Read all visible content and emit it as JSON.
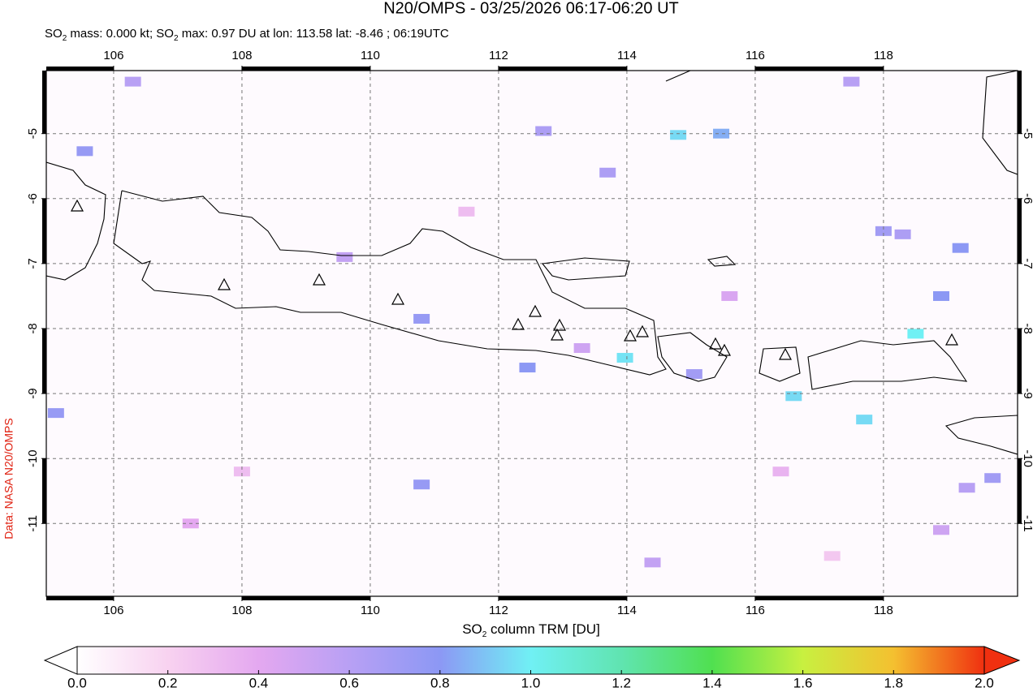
{
  "title": "N20/OMPS - 03/25/2026 06:17-06:20 UT",
  "subtitle": [
    "SO",
    "2",
    " mass: 0.000 kt; SO",
    "2",
    " max: 0.97 DU at lon: 113.58 lat: -8.46 ; 06:19UTC"
  ],
  "credit": "Data: NASA N20/OMPS",
  "chart_data": {
    "type": "map",
    "xlim": [
      104.95,
      120.09
    ],
    "ylim": [
      -12.12,
      -4.03
    ],
    "xticks": [
      106,
      108,
      110,
      112,
      114,
      116,
      118
    ],
    "yticks": [
      -5,
      -6,
      -7,
      -8,
      -9,
      -10,
      -11
    ],
    "grid": true,
    "pixels": [
      {
        "lon": 114.8,
        "lat": -5.02,
        "value": 0.95
      },
      {
        "lon": 115.47,
        "lat": -5.0,
        "value": 0.85
      },
      {
        "lon": 119.2,
        "lat": -6.76,
        "value": 0.8
      },
      {
        "lon": 118.9,
        "lat": -7.5,
        "value": 0.8
      },
      {
        "lon": 118.5,
        "lat": -8.08,
        "value": 1.0
      },
      {
        "lon": 116.6,
        "lat": -9.04,
        "value": 0.95
      },
      {
        "lon": 117.7,
        "lat": -9.4,
        "value": 0.95
      },
      {
        "lon": 113.97,
        "lat": -8.45,
        "value": 0.97
      },
      {
        "lon": 110.8,
        "lat": -7.85,
        "value": 0.75
      },
      {
        "lon": 112.45,
        "lat": -8.6,
        "value": 0.8
      },
      {
        "lon": 110.8,
        "lat": -10.4,
        "value": 0.75
      },
      {
        "lon": 105.55,
        "lat": -5.27,
        "value": 0.75
      },
      {
        "lon": 105.1,
        "lat": -9.3,
        "value": 0.75
      },
      {
        "lon": 119.7,
        "lat": -10.3,
        "value": 0.7
      },
      {
        "lon": 118.0,
        "lat": -6.5,
        "value": 0.7
      },
      {
        "lon": 118.3,
        "lat": -6.55,
        "value": 0.65
      },
      {
        "lon": 112.7,
        "lat": -4.96,
        "value": 0.65
      },
      {
        "lon": 113.7,
        "lat": -5.6,
        "value": 0.65
      },
      {
        "lon": 115.05,
        "lat": -8.7,
        "value": 0.7
      },
      {
        "lon": 117.5,
        "lat": -4.2,
        "value": 0.6
      },
      {
        "lon": 119.3,
        "lat": -10.45,
        "value": 0.6
      },
      {
        "lon": 108.0,
        "lat": -10.2,
        "value": 0.3
      },
      {
        "lon": 106.3,
        "lat": -4.2,
        "value": 0.6
      },
      {
        "lon": 109.6,
        "lat": -6.9,
        "value": 0.55
      },
      {
        "lon": 113.3,
        "lat": -8.3,
        "value": 0.5
      },
      {
        "lon": 115.6,
        "lat": -7.5,
        "value": 0.45
      },
      {
        "lon": 116.4,
        "lat": -10.2,
        "value": 0.35
      },
      {
        "lon": 107.2,
        "lat": -11.0,
        "value": 0.4
      },
      {
        "lon": 111.5,
        "lat": -6.2,
        "value": 0.3
      },
      {
        "lon": 117.2,
        "lat": -11.5,
        "value": 0.25
      },
      {
        "lon": 114.4,
        "lat": -11.6,
        "value": 0.55
      },
      {
        "lon": 118.9,
        "lat": -11.1,
        "value": 0.5
      }
    ],
    "colorbar": {
      "label": [
        "SO",
        "2",
        " column TRM [DU]"
      ],
      "lim": [
        0,
        2
      ],
      "ticks": [
        {
          "value": 0,
          "label": "0.0"
        },
        {
          "value": 0.2,
          "label": "0.2"
        },
        {
          "value": 0.4,
          "label": "0.4"
        },
        {
          "value": 0.6,
          "label": "0.6"
        },
        {
          "value": 0.8,
          "label": "0.8"
        },
        {
          "value": 1.0,
          "label": "1.0"
        },
        {
          "value": 1.2,
          "label": "1.2"
        },
        {
          "value": 1.4,
          "label": "1.4"
        },
        {
          "value": 1.6,
          "label": "1.6"
        },
        {
          "value": 1.8,
          "label": "1.8"
        },
        {
          "value": 2.0,
          "label": "2.0"
        }
      ],
      "colors": [
        "#ffffff",
        "#f8d2f0",
        "#e4a8f0",
        "#b8a0f4",
        "#8c98f4",
        "#70f0f4",
        "#60e4b0",
        "#50e050",
        "#c8f040",
        "#f4c030",
        "#f03010"
      ]
    }
  }
}
